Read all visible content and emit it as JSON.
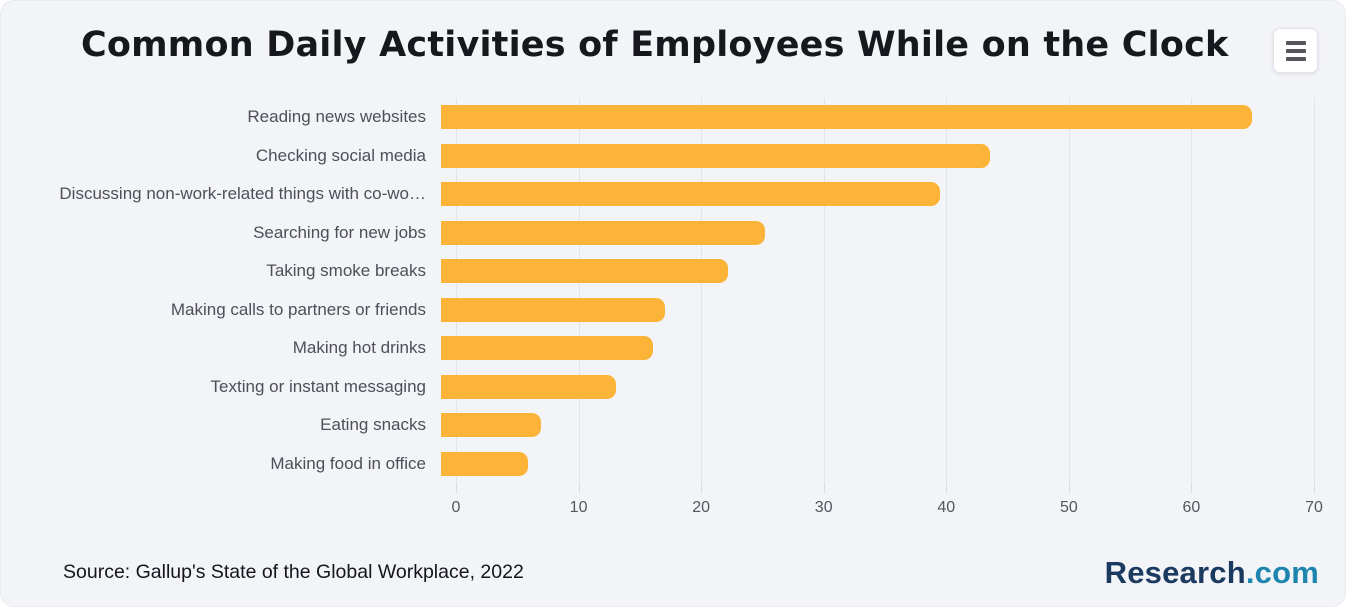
{
  "header": {
    "menu_icon": "hamburger-menu-icon"
  },
  "chart_data": {
    "type": "bar",
    "orientation": "horizontal",
    "title": "Common Daily Activities of Employees While on the Clock",
    "categories": [
      "Reading news websites",
      "Checking social media",
      "Discussing non-work-related things with co-wo…",
      "Searching for new jobs",
      "Taking smoke breaks",
      "Making calls to partners or friends",
      "Making hot drinks",
      "Texting or instant messaging",
      "Eating snacks",
      "Making food in office"
    ],
    "values": [
      65,
      44,
      40,
      26,
      23,
      18,
      17,
      14,
      8,
      7
    ],
    "xlabel": "",
    "ylabel": "",
    "xlim": [
      0,
      70
    ],
    "xticks": [
      0,
      10,
      20,
      30,
      40,
      50,
      60,
      70
    ],
    "grid": true,
    "legend_position": "none",
    "bar_color": "#FBB438",
    "gridline_color": "#e2e4eb",
    "label_color": "#4e4f58",
    "tick_color": "#55565e",
    "background_color": "#f3f4f8"
  },
  "footer": {
    "source": "Source: Gallup's State of the Global Workplace, 2022",
    "logo_text_primary": "Research",
    "logo_text_secondary": ".com",
    "logo_color_primary": "#1b3a60",
    "logo_color_secondary": "#1e86ae"
  }
}
